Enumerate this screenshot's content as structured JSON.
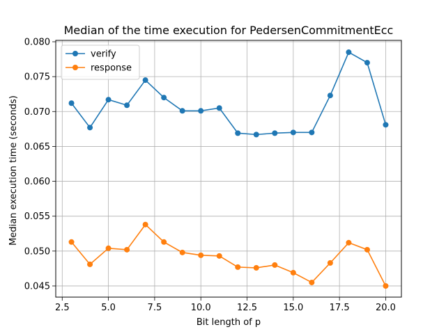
{
  "chart_data": {
    "type": "line",
    "title": "Median of the time execution for PedersenCommitmentEcc",
    "xlabel": "Bit length of p",
    "ylabel": "Median execution time (seconds)",
    "x": [
      3,
      4,
      5,
      6,
      7,
      8,
      9,
      10,
      11,
      12,
      13,
      14,
      15,
      16,
      17,
      18,
      19,
      20
    ],
    "xlim": [
      2.15,
      20.85
    ],
    "ylim": [
      0.0434,
      0.0802
    ],
    "xticks": [
      2.5,
      5.0,
      7.5,
      10.0,
      12.5,
      15.0,
      17.5,
      20.0
    ],
    "xtick_labels": [
      "2.5",
      "5.0",
      "7.5",
      "10.0",
      "12.5",
      "15.0",
      "17.5",
      "20.0"
    ],
    "yticks": [
      0.045,
      0.05,
      0.055,
      0.06,
      0.065,
      0.07,
      0.075,
      0.08
    ],
    "ytick_labels": [
      "0.045",
      "0.050",
      "0.055",
      "0.060",
      "0.065",
      "0.070",
      "0.075",
      "0.080"
    ],
    "grid": true,
    "legend_position": "top-left",
    "series": [
      {
        "name": "verify",
        "color": "#1f77b4",
        "values": [
          0.0712,
          0.0677,
          0.0717,
          0.0709,
          0.0745,
          0.072,
          0.0701,
          0.0701,
          0.0705,
          0.0669,
          0.0667,
          0.0669,
          0.067,
          0.067,
          0.0723,
          0.0785,
          0.077,
          0.0681
        ]
      },
      {
        "name": "response",
        "color": "#ff7f0e",
        "values": [
          0.0513,
          0.0481,
          0.0504,
          0.0502,
          0.0538,
          0.0513,
          0.0498,
          0.0494,
          0.0493,
          0.0477,
          0.0476,
          0.048,
          0.0469,
          0.0455,
          0.0483,
          0.0512,
          0.0502,
          0.045
        ]
      }
    ]
  }
}
